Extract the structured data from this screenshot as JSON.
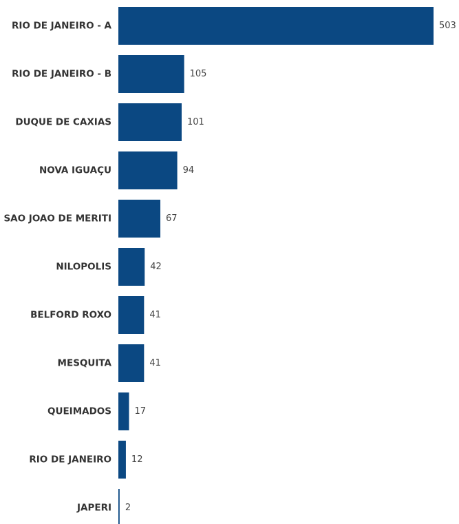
{
  "chart_data": {
    "type": "bar",
    "orientation": "horizontal",
    "categories": [
      "RIO DE JANEIRO - A",
      "RIO DE JANEIRO - B",
      "DUQUE DE CAXIAS",
      "NOVA IGUAÇU",
      "SAO JOAO DE MERITI",
      "NILOPOLIS",
      "BELFORD ROXO",
      "MESQUITA",
      "QUEIMADOS",
      "RIO DE JANEIRO",
      "JAPERI"
    ],
    "values": [
      503,
      105,
      101,
      94,
      67,
      42,
      41,
      41,
      17,
      12,
      2
    ],
    "data_labels": [
      "503",
      "105",
      "101",
      "94",
      "67",
      "42",
      "41",
      "41",
      "17",
      "12",
      "2"
    ],
    "title": "",
    "xlabel": "",
    "ylabel": "",
    "xlim": [
      0,
      503
    ],
    "grid": false,
    "legend": "none",
    "bar_color": "#0b4882"
  }
}
